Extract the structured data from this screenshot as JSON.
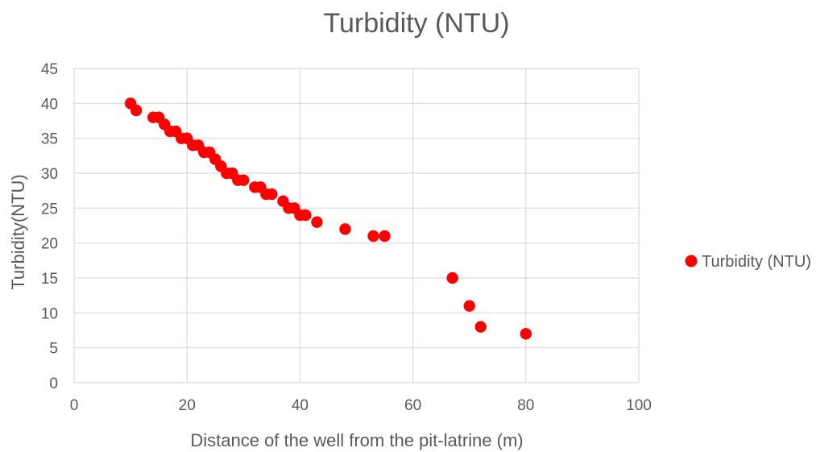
{
  "chart_data": {
    "type": "scatter",
    "title": "Turbidity (NTU)",
    "xlabel": "Distance of the well from the pit-latrine (m)",
    "ylabel": "Turbidity(NTU)",
    "xlim": [
      0,
      100
    ],
    "ylim": [
      0,
      45
    ],
    "xticks": [
      "0",
      "20",
      "40",
      "60",
      "80",
      "100"
    ],
    "yticks": [
      "0",
      "5",
      "10",
      "15",
      "20",
      "25",
      "30",
      "35",
      "40",
      "45"
    ],
    "grid": true,
    "legend_position": "right",
    "series": [
      {
        "name": "Turbidity (NTU)",
        "color": "#ff0000",
        "points": [
          [
            10,
            40
          ],
          [
            11,
            39
          ],
          [
            14,
            38
          ],
          [
            15,
            38
          ],
          [
            16,
            37
          ],
          [
            17,
            36
          ],
          [
            18,
            36
          ],
          [
            19,
            35
          ],
          [
            20,
            35
          ],
          [
            21,
            34
          ],
          [
            22,
            34
          ],
          [
            23,
            33
          ],
          [
            24,
            33
          ],
          [
            25,
            32
          ],
          [
            26,
            31
          ],
          [
            27,
            30
          ],
          [
            28,
            30
          ],
          [
            29,
            29
          ],
          [
            30,
            29
          ],
          [
            32,
            28
          ],
          [
            33,
            28
          ],
          [
            34,
            27
          ],
          [
            35,
            27
          ],
          [
            37,
            26
          ],
          [
            38,
            25
          ],
          [
            39,
            25
          ],
          [
            40,
            24
          ],
          [
            41,
            24
          ],
          [
            43,
            23
          ],
          [
            48,
            22
          ],
          [
            53,
            21
          ],
          [
            55,
            21
          ],
          [
            67,
            15
          ],
          [
            70,
            11
          ],
          [
            72,
            8
          ],
          [
            80,
            7
          ]
        ]
      }
    ]
  }
}
